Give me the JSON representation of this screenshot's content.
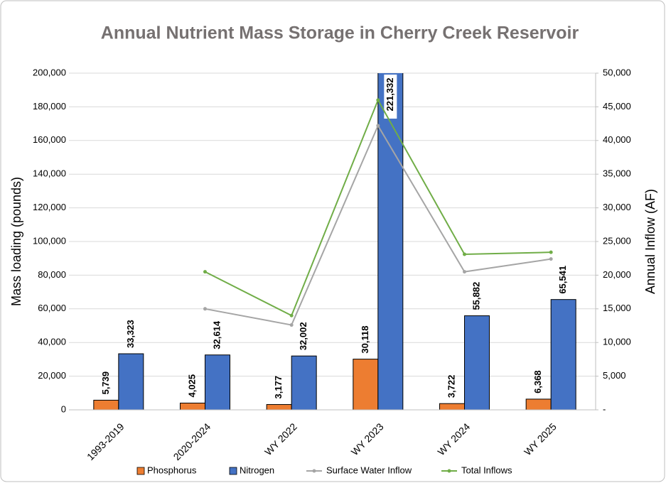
{
  "chart_data": {
    "type": "bar",
    "title": "Annual Nutrient Mass Storage in Cherry Creek Reservoir",
    "y_label": "Mass loading (pounds)",
    "y2_label": "Annual Inflow (AF)",
    "categories": [
      "1993-2019",
      "2020-2024",
      "WY 2022",
      "WY 2023",
      "WY 2024",
      "WY 2025"
    ],
    "series": [
      {
        "name": "Phosphorus",
        "type": "bar",
        "color": "#ed7d31",
        "values": [
          5739,
          4025,
          3177,
          30118,
          3722,
          6368
        ],
        "value_labels": [
          "5,739",
          "4,025",
          "3,177",
          "30,118",
          "3,722",
          "6,368"
        ]
      },
      {
        "name": "Nitrogen",
        "type": "bar",
        "color": "#4472c4",
        "values": [
          33323,
          32614,
          32002,
          221332,
          55882,
          65541
        ],
        "value_labels": [
          "33,323",
          "32,614",
          "32,002",
          "221,332",
          "55,882",
          "65,541"
        ]
      },
      {
        "name": "Surface Water Inflow",
        "type": "line",
        "axis": "y2",
        "color": "#a5a5a5",
        "values": [
          null,
          15000,
          12600,
          42200,
          20500,
          22400
        ]
      },
      {
        "name": "Total Inflows",
        "type": "line",
        "axis": "y2",
        "color": "#70ad47",
        "values": [
          null,
          20500,
          14000,
          46000,
          23100,
          23400
        ]
      }
    ],
    "ylim": [
      0,
      200000
    ],
    "yticks": [
      0,
      {
        "value": 20000,
        "label": "20,000"
      },
      {
        "value": 40000,
        "label": "40,000"
      },
      {
        "value": 60000,
        "label": "60,000"
      },
      {
        "value": 80000,
        "label": "80,000"
      },
      {
        "value": 100000,
        "label": "100,000"
      },
      {
        "value": 120000,
        "label": "120,000"
      },
      {
        "value": 140000,
        "label": "140,000"
      },
      {
        "value": 160000,
        "label": "160,000"
      },
      {
        "value": 180000,
        "label": "180,000"
      },
      {
        "value": 200000,
        "label": "200,000"
      }
    ],
    "y2lim": [
      0,
      50000
    ],
    "y2ticks": [
      {
        "value": 0,
        "label": "-"
      },
      {
        "value": 5000,
        "label": "5,000"
      },
      {
        "value": 10000,
        "label": "10,000"
      },
      {
        "value": 15000,
        "label": "15,000"
      },
      {
        "value": 20000,
        "label": "20,000"
      },
      {
        "value": 25000,
        "label": "25,000"
      },
      {
        "value": 30000,
        "label": "30,000"
      },
      {
        "value": 35000,
        "label": "35,000"
      },
      {
        "value": 40000,
        "label": "40,000"
      },
      {
        "value": 45000,
        "label": "45,000"
      },
      {
        "value": 50000,
        "label": "50,000"
      }
    ],
    "grid": true,
    "legend": "bottom"
  }
}
